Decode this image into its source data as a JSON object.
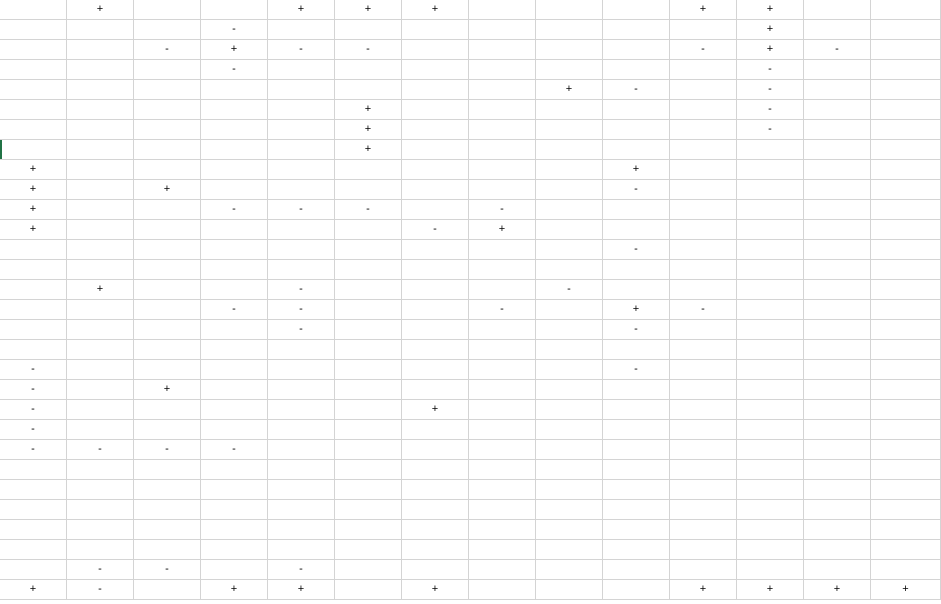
{
  "sheet": {
    "accent_color": "#217346",
    "grid_color": "#d4d4d4",
    "rows": [
      [
        "",
        "+",
        "",
        "",
        "+",
        "+",
        "+",
        "",
        "",
        "",
        "+",
        "+",
        "",
        ""
      ],
      [
        "",
        "",
        "",
        "-",
        "",
        "",
        "",
        "",
        "",
        "",
        "",
        "+",
        "",
        ""
      ],
      [
        "",
        "",
        "-",
        "+",
        "-",
        "-",
        "",
        "",
        "",
        "",
        "-",
        "+",
        "-",
        ""
      ],
      [
        "",
        "",
        "",
        "-",
        "",
        "",
        "",
        "",
        "",
        "",
        "",
        "-",
        "",
        ""
      ],
      [
        "",
        "",
        "",
        "",
        "",
        "",
        "",
        "",
        "+",
        "-",
        "",
        "-",
        "",
        ""
      ],
      [
        "",
        "",
        "",
        "",
        "",
        "+",
        "",
        "",
        "",
        "",
        "",
        "-",
        "",
        ""
      ],
      [
        "",
        "",
        "",
        "",
        "",
        "+",
        "",
        "",
        "",
        "",
        "",
        "-",
        "",
        ""
      ],
      [
        "",
        "",
        "",
        "",
        "",
        "+",
        "",
        "",
        "",
        "",
        "",
        "",
        "",
        ""
      ],
      [
        "+",
        "",
        "",
        "",
        "",
        "",
        "",
        "",
        "",
        "+",
        "",
        "",
        "",
        ""
      ],
      [
        "+",
        "",
        "+",
        "",
        "",
        "",
        "",
        "",
        "",
        "-",
        "",
        "",
        "",
        ""
      ],
      [
        "+",
        "",
        "",
        "-",
        "-",
        "-",
        "",
        "-",
        "",
        "",
        "",
        "",
        "",
        ""
      ],
      [
        "+",
        "",
        "",
        "",
        "",
        "",
        "-",
        "+",
        "",
        "",
        "",
        "",
        "",
        ""
      ],
      [
        "",
        "",
        "",
        "",
        "",
        "",
        "",
        "",
        "",
        "-",
        "",
        "",
        "",
        ""
      ],
      [
        "",
        "",
        "",
        "",
        "",
        "",
        "",
        "",
        "",
        "",
        "",
        "",
        "",
        ""
      ],
      [
        "",
        "+",
        "",
        "",
        "-",
        "",
        "",
        "",
        "-",
        "",
        "",
        "",
        "",
        ""
      ],
      [
        "",
        "",
        "",
        "-",
        "-",
        "",
        "",
        "-",
        "",
        "+",
        "-",
        "",
        "",
        ""
      ],
      [
        "",
        "",
        "",
        "",
        "-",
        "",
        "",
        "",
        "",
        "-",
        "",
        "",
        "",
        ""
      ],
      [
        "",
        "",
        "",
        "",
        "",
        "",
        "",
        "",
        "",
        "",
        "",
        "",
        "",
        ""
      ],
      [
        "-",
        "",
        "",
        "",
        "",
        "",
        "",
        "",
        "",
        "-",
        "",
        "",
        "",
        ""
      ],
      [
        "-",
        "",
        "+",
        "",
        "",
        "",
        "",
        "",
        "",
        "",
        "",
        "",
        "",
        ""
      ],
      [
        "-",
        "",
        "",
        "",
        "",
        "",
        "+",
        "",
        "",
        "",
        "",
        "",
        "",
        ""
      ],
      [
        "-",
        "",
        "",
        "",
        "",
        "",
        "",
        "",
        "",
        "",
        "",
        "",
        "",
        ""
      ],
      [
        "-",
        "-",
        "-",
        "-",
        "",
        "",
        "",
        "",
        "",
        "",
        "",
        "",
        "",
        ""
      ],
      [
        "",
        "",
        "",
        "",
        "",
        "",
        "",
        "",
        "",
        "",
        "",
        "",
        "",
        ""
      ],
      [
        "",
        "",
        "",
        "",
        "",
        "",
        "",
        "",
        "",
        "",
        "",
        "",
        "",
        ""
      ],
      [
        "",
        "",
        "",
        "",
        "",
        "",
        "",
        "",
        "",
        "",
        "",
        "",
        "",
        ""
      ],
      [
        "",
        "",
        "",
        "",
        "",
        "",
        "",
        "",
        "",
        "",
        "",
        "",
        "",
        ""
      ],
      [
        "",
        "",
        "",
        "",
        "",
        "",
        "",
        "",
        "",
        "",
        "",
        "",
        "",
        ""
      ],
      [
        "",
        "-",
        "-",
        "",
        "-",
        "",
        "",
        "",
        "",
        "",
        "",
        "",
        "",
        ""
      ],
      [
        "+",
        "-",
        "",
        "+",
        "+",
        "",
        "+",
        "",
        "",
        "",
        "+",
        "+",
        "+",
        "+"
      ]
    ]
  }
}
